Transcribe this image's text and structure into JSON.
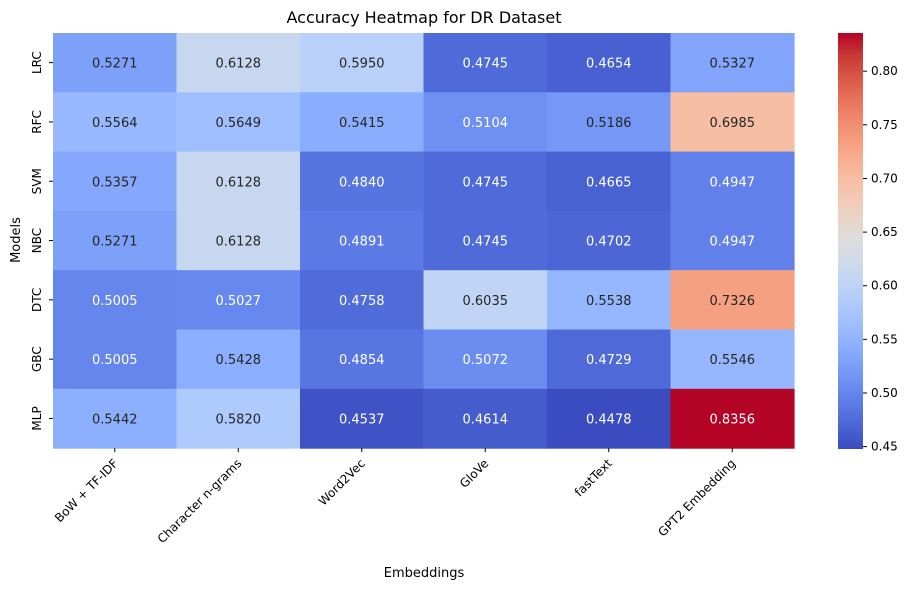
{
  "chart_data": {
    "type": "heatmap",
    "title": "Accuracy Heatmap for DR Dataset",
    "xlabel": "Embeddings",
    "ylabel": "Models",
    "columns": [
      "BoW + TF-IDF",
      "Character n-grams",
      "Word2Vec",
      "GloVe",
      "fastText",
      "GPT2 Embedding"
    ],
    "rows": [
      "LRC",
      "RFC",
      "SVM",
      "NBC",
      "DTC",
      "GBC",
      "MLP"
    ],
    "values": [
      [
        0.5271,
        0.6128,
        0.595,
        0.4745,
        0.4654,
        0.5327
      ],
      [
        0.5564,
        0.5649,
        0.5415,
        0.5104,
        0.5186,
        0.6985
      ],
      [
        0.5357,
        0.6128,
        0.484,
        0.4745,
        0.4665,
        0.4947
      ],
      [
        0.5271,
        0.6128,
        0.4891,
        0.4745,
        0.4702,
        0.4947
      ],
      [
        0.5005,
        0.5027,
        0.4758,
        0.6035,
        0.5538,
        0.7326
      ],
      [
        0.5005,
        0.5428,
        0.4854,
        0.5072,
        0.4729,
        0.5546
      ],
      [
        0.5442,
        0.582,
        0.4537,
        0.4614,
        0.4478,
        0.8356
      ]
    ],
    "value_labels": [
      [
        "0.5271",
        "0.6128",
        "0.5950",
        "0.4745",
        "0.4654",
        "0.5327"
      ],
      [
        "0.5564",
        "0.5649",
        "0.5415",
        "0.5104",
        "0.5186",
        "0.6985"
      ],
      [
        "0.5357",
        "0.6128",
        "0.4840",
        "0.4745",
        "0.4665",
        "0.4947"
      ],
      [
        "0.5271",
        "0.6128",
        "0.4891",
        "0.4745",
        "0.4702",
        "0.4947"
      ],
      [
        "0.5005",
        "0.5027",
        "0.4758",
        "0.6035",
        "0.5538",
        "0.7326"
      ],
      [
        "0.5005",
        "0.5428",
        "0.4854",
        "0.5072",
        "0.4729",
        "0.5546"
      ],
      [
        "0.5442",
        "0.5820",
        "0.4537",
        "0.4614",
        "0.4478",
        "0.8356"
      ]
    ],
    "colormap": "coolwarm",
    "vmin": 0.4478,
    "vmax": 0.8356,
    "colorbar_ticks": [
      0.45,
      0.5,
      0.55,
      0.6,
      0.65,
      0.7,
      0.75,
      0.8
    ],
    "colorbar_tick_labels": [
      "0.45",
      "0.50",
      "0.55",
      "0.60",
      "0.65",
      "0.70",
      "0.75",
      "0.80"
    ]
  }
}
